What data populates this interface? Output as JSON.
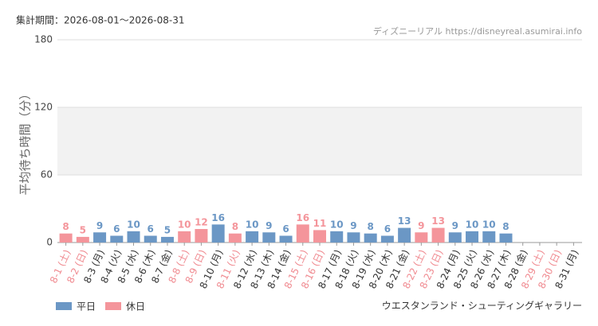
{
  "chart_data": {
    "type": "bar",
    "title": "ウエスタンランド・シューティングギャラリー",
    "subtitle": "集計期間：2026-08-01〜2026-08-31",
    "source": "ディズニーリアル https://disneyreal.asumirai.info",
    "y_label": "平均待ち時間（分）",
    "categories": [
      "8-1 (土)",
      "8-2 (日)",
      "8-3 (月)",
      "8-4 (火)",
      "8-5 (水)",
      "8-6 (木)",
      "8-7 (金)",
      "8-8 (土)",
      "8-9 (日)",
      "8-10 (月)",
      "8-11 (火)",
      "8-12 (水)",
      "8-13 (木)",
      "8-14 (金)",
      "8-15 (土)",
      "8-16 (日)",
      "8-17 (月)",
      "8-18 (火)",
      "8-19 (水)",
      "8-20 (木)",
      "8-21 (金)",
      "8-22 (土)",
      "8-23 (日)",
      "8-24 (月)",
      "8-25 (火)",
      "8-26 (水)",
      "8-27 (木)",
      "8-28 (金)",
      "8-29 (土)",
      "8-30 (日)",
      "8-31 (月)"
    ],
    "category_colors": [
      "#f08a90",
      "#f08a90",
      "#333333",
      "#333333",
      "#333333",
      "#333333",
      "#333333",
      "#f08a90",
      "#f08a90",
      "#333333",
      "#f08a90",
      "#333333",
      "#333333",
      "#333333",
      "#f08a90",
      "#f08a90",
      "#333333",
      "#333333",
      "#333333",
      "#333333",
      "#333333",
      "#f08a90",
      "#f08a90",
      "#333333",
      "#333333",
      "#333333",
      "#333333",
      "#333333",
      "#f08a90",
      "#f08a90",
      "#333333"
    ],
    "series": [
      {
        "name": "平日",
        "color": "#6b97c5",
        "values": [
          null,
          null,
          9,
          6,
          10,
          6,
          5,
          null,
          null,
          16,
          null,
          10,
          9,
          6,
          null,
          null,
          10,
          9,
          8,
          6,
          13,
          null,
          null,
          9,
          10,
          10,
          8,
          null,
          null,
          null,
          null
        ]
      },
      {
        "name": "休日",
        "color": "#f4959b",
        "values": [
          8,
          5,
          null,
          null,
          null,
          null,
          null,
          10,
          12,
          null,
          8,
          null,
          null,
          null,
          16,
          11,
          null,
          null,
          null,
          null,
          null,
          9,
          13,
          null,
          null,
          null,
          null,
          null,
          null,
          null,
          null
        ]
      }
    ],
    "ylim": [
      0,
      180
    ],
    "yticks": [
      0,
      60,
      120,
      180
    ],
    "grid": true
  }
}
